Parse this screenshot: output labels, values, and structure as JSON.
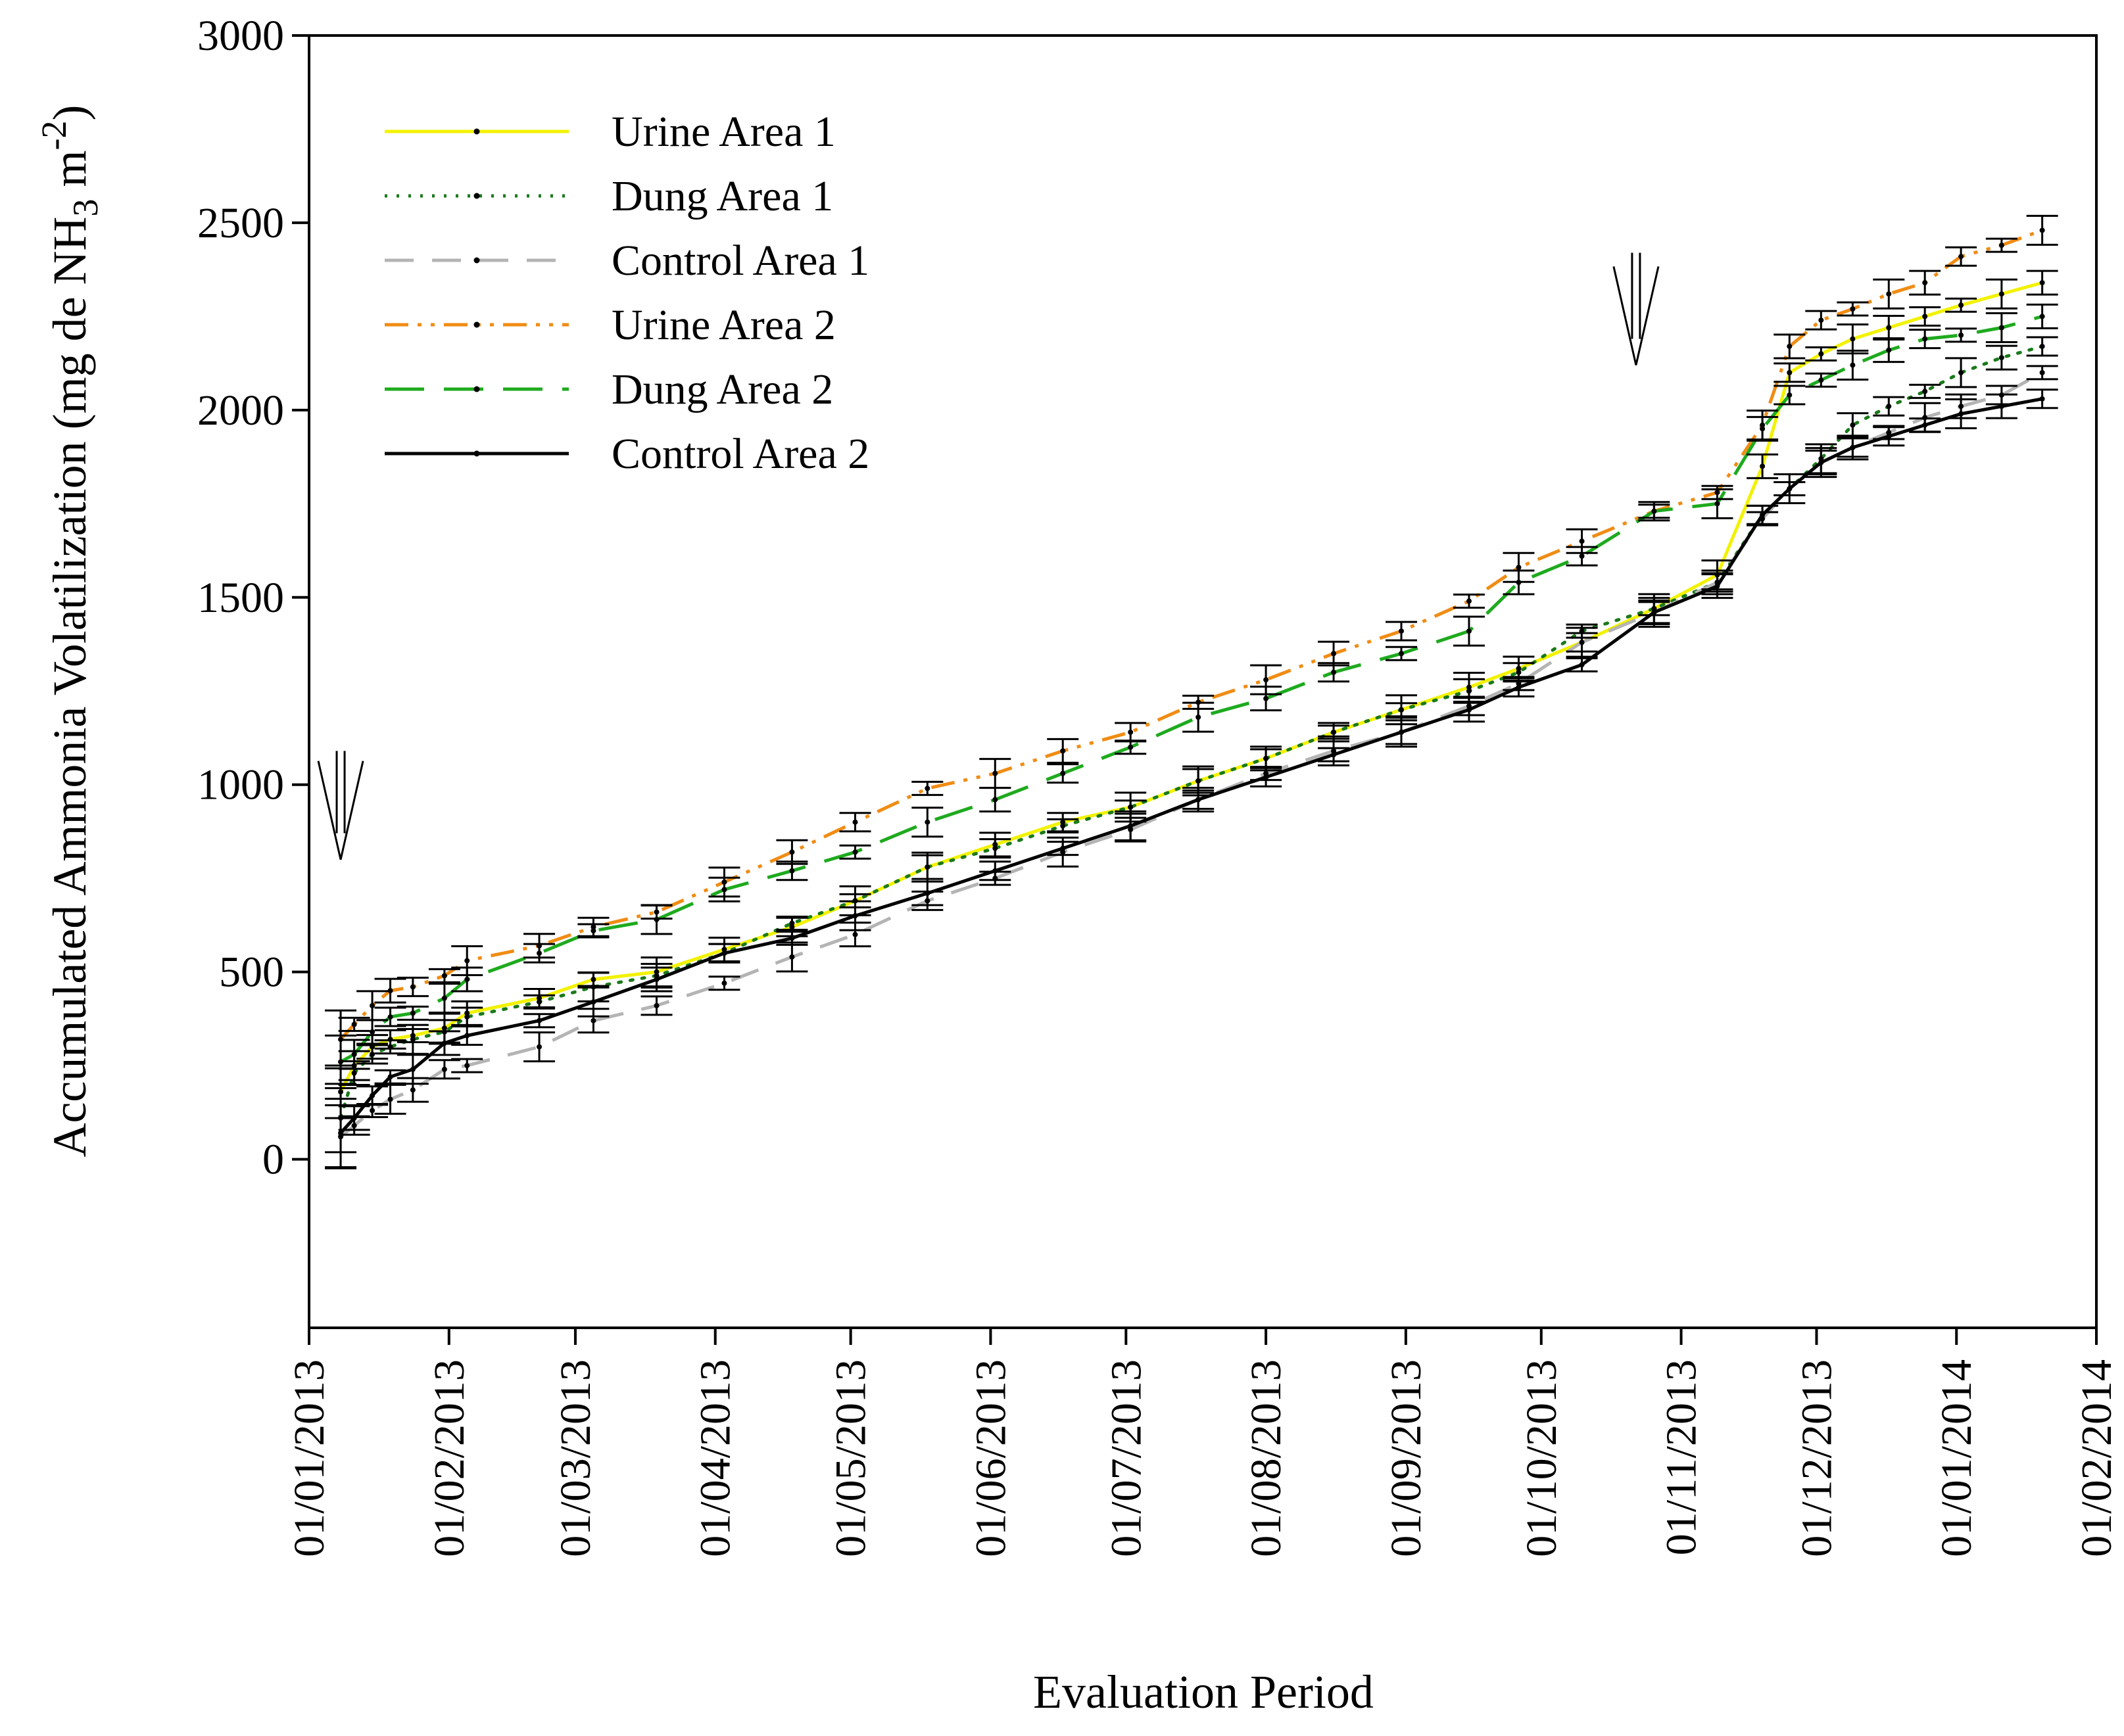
{
  "chart_data": {
    "type": "line",
    "title": "",
    "xlabel": "Evaluation Period",
    "ylabel_main": "Accumulated Ammonia Volatilization (mg de NH",
    "ylabel_sub": "3",
    "ylabel_mid": " m",
    "ylabel_sup": "-2",
    "ylabel_end": ")",
    "ylim": [
      -450,
      3000
    ],
    "xlim": [
      0,
      396
    ],
    "yticks": [
      0,
      500,
      1000,
      1500,
      2000,
      2500,
      3000
    ],
    "ytick_labels": [
      "0",
      "500",
      "1000",
      "1500",
      "2000",
      "2500",
      "3000"
    ],
    "xticks": [
      0,
      31,
      59,
      90,
      120,
      151,
      181,
      212,
      243,
      273,
      304,
      334,
      365,
      396
    ],
    "xtick_labels": [
      "01/01/2013",
      "01/02/2013",
      "01/03/2013",
      "01/04/2013",
      "01/05/2013",
      "01/06/2013",
      "01/07/2013",
      "01/08/2013",
      "01/09/2013",
      "01/10/2013",
      "01/11/2013",
      "01/12/2013",
      "01/01/2014",
      "01/02/2014"
    ],
    "arrows": [
      {
        "x": 7,
        "y_top": 1090,
        "y_tip": 800
      },
      {
        "x": 294,
        "y_top": 2420,
        "y_tip": 2120
      }
    ],
    "legend_position": "top-left",
    "series": [
      {
        "name": "Urine Area 1",
        "color": "#f2f200",
        "style": "solid",
        "x": [
          7,
          10,
          14,
          18,
          23,
          30,
          35,
          51,
          63,
          77,
          92,
          107,
          121,
          137,
          152,
          167,
          182,
          197,
          212,
          227,
          242,
          257,
          268,
          282,
          298,
          312,
          322,
          328,
          335,
          342,
          350,
          358,
          366,
          375,
          384
        ],
        "y": [
          180,
          250,
          300,
          320,
          330,
          350,
          390,
          430,
          480,
          500,
          560,
          620,
          690,
          780,
          840,
          900,
          940,
          1010,
          1070,
          1140,
          1200,
          1260,
          1310,
          1380,
          1470,
          1560,
          1850,
          2100,
          2150,
          2190,
          2220,
          2250,
          2280,
          2310,
          2340
        ]
      },
      {
        "name": "Dung Area 1",
        "color": "#1a7a1a",
        "style": "dotted",
        "x": [
          7,
          10,
          14,
          18,
          23,
          30,
          35,
          51,
          63,
          77,
          92,
          107,
          121,
          137,
          152,
          167,
          182,
          197,
          212,
          227,
          242,
          257,
          268,
          282,
          298,
          312,
          322,
          328,
          335,
          342,
          350,
          358,
          366,
          375,
          384
        ],
        "y": [
          110,
          230,
          280,
          300,
          320,
          340,
          380,
          420,
          460,
          490,
          550,
          630,
          690,
          780,
          830,
          890,
          940,
          1010,
          1070,
          1140,
          1200,
          1250,
          1300,
          1410,
          1470,
          1540,
          1720,
          1790,
          1870,
          1960,
          2010,
          2050,
          2100,
          2140,
          2170
        ]
      },
      {
        "name": "Control Area 1",
        "color": "#b4b4b4",
        "style": "dashed",
        "x": [
          7,
          10,
          14,
          18,
          23,
          30,
          35,
          51,
          63,
          77,
          92,
          107,
          121,
          137,
          152,
          167,
          182,
          197,
          212,
          227,
          242,
          257,
          268,
          282,
          298,
          312,
          322,
          328,
          335,
          342,
          350,
          358,
          366,
          375,
          384
        ],
        "y": [
          60,
          90,
          130,
          160,
          185,
          240,
          250,
          300,
          370,
          410,
          470,
          540,
          600,
          690,
          750,
          820,
          880,
          960,
          1030,
          1090,
          1140,
          1210,
          1270,
          1380,
          1460,
          1540,
          1710,
          1790,
          1860,
          1900,
          1940,
          1980,
          2010,
          2040,
          2100
        ]
      },
      {
        "name": "Urine Area 2",
        "color": "#f08c14",
        "style": "dashdotdot",
        "x": [
          7,
          10,
          14,
          18,
          23,
          30,
          35,
          51,
          63,
          77,
          92,
          107,
          121,
          137,
          152,
          167,
          182,
          197,
          212,
          227,
          242,
          257,
          268,
          282,
          298,
          312,
          322,
          328,
          335,
          342,
          350,
          358,
          366,
          375,
          384
        ],
        "y": [
          320,
          360,
          410,
          450,
          460,
          490,
          530,
          570,
          620,
          660,
          740,
          820,
          900,
          990,
          1030,
          1090,
          1140,
          1220,
          1280,
          1350,
          1410,
          1490,
          1580,
          1650,
          1730,
          1780,
          1960,
          2170,
          2240,
          2270,
          2310,
          2340,
          2410,
          2440,
          2480
        ]
      },
      {
        "name": "Dung Area 2",
        "color": "#1eaa1e",
        "style": "longdash",
        "x": [
          7,
          10,
          14,
          18,
          23,
          30,
          35,
          51,
          63,
          77,
          92,
          107,
          121,
          137,
          152,
          167,
          182,
          197,
          212,
          227,
          242,
          257,
          268,
          282,
          298,
          312,
          322,
          328,
          335,
          342,
          350,
          358,
          366,
          375,
          384
        ],
        "y": [
          260,
          280,
          340,
          380,
          390,
          430,
          480,
          550,
          610,
          640,
          720,
          770,
          820,
          900,
          960,
          1030,
          1100,
          1180,
          1230,
          1300,
          1350,
          1410,
          1540,
          1610,
          1730,
          1750,
          1950,
          2040,
          2080,
          2120,
          2160,
          2190,
          2200,
          2220,
          2250
        ]
      },
      {
        "name": "Control Area 2",
        "color": "#000000",
        "style": "solid",
        "x": [
          7,
          10,
          14,
          18,
          23,
          30,
          35,
          51,
          63,
          77,
          92,
          107,
          121,
          137,
          152,
          167,
          182,
          197,
          212,
          227,
          242,
          257,
          268,
          282,
          298,
          312,
          322,
          328,
          335,
          342,
          350,
          358,
          366,
          375,
          384
        ],
        "y": [
          70,
          110,
          170,
          220,
          240,
          310,
          330,
          370,
          420,
          480,
          550,
          590,
          650,
          710,
          770,
          830,
          890,
          960,
          1020,
          1080,
          1140,
          1200,
          1260,
          1320,
          1460,
          1530,
          1720,
          1790,
          1860,
          1900,
          1930,
          1960,
          1990,
          2010,
          2030
        ]
      }
    ]
  }
}
